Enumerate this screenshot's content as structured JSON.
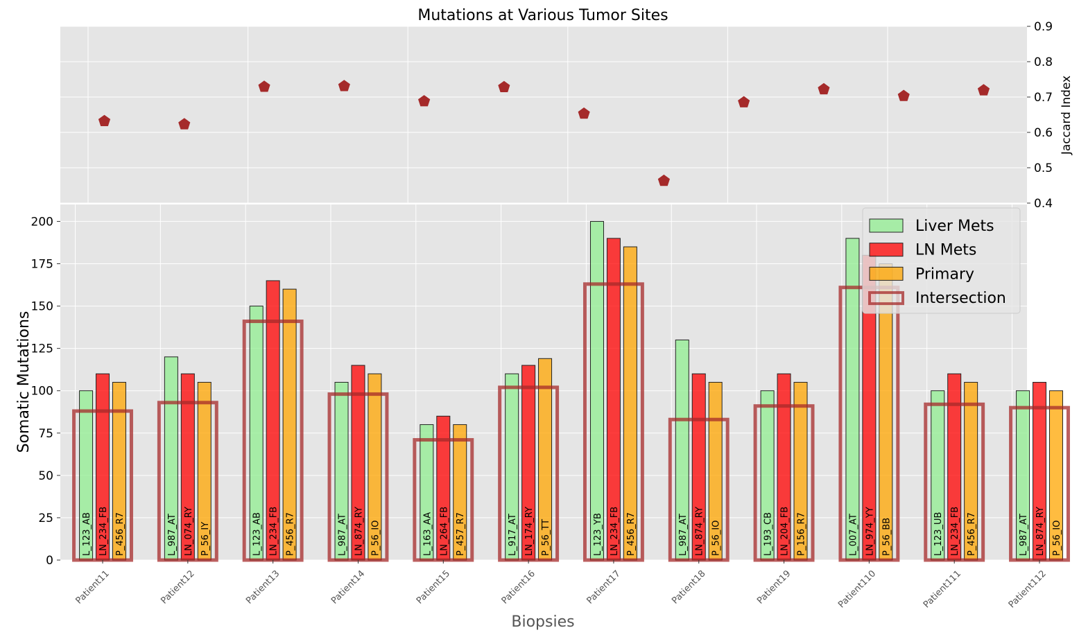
{
  "chart_data": {
    "title": "Mutations at Various Tumor Sites",
    "colors": {
      "liver": "#90ee90",
      "ln": "#ff0000",
      "primary": "#ffa500",
      "intersection": "#a52a2a",
      "jaccard": "#a52a2a",
      "panel_bg": "#e5e5e5",
      "grid": "#ffffff"
    },
    "top_panel": {
      "type": "scatter",
      "marker": "pentagon",
      "ylabel": "Jaccard Index",
      "ylim": [
        0.4,
        0.9
      ],
      "yticks": [
        "0.4",
        "0.5",
        "0.6",
        "0.7",
        "0.8",
        "0.9"
      ],
      "points": [
        {
          "biopsy": "L_123_AB",
          "y": 0.632
        },
        {
          "biopsy": "L_987_AT",
          "y": 0.623
        },
        {
          "biopsy": "LN_234_FB",
          "y": 0.729
        },
        {
          "biopsy": "LN_874_RY",
          "y": 0.731
        },
        {
          "biopsy": "L_163_AA",
          "y": 0.688
        },
        {
          "biopsy": "LN_174_RY",
          "y": 0.728
        },
        {
          "biopsy": "L_123_YB",
          "y": 0.653
        },
        {
          "biopsy": "L_987_AT",
          "y": 0.463
        },
        {
          "biopsy": "L_193_CB",
          "y": 0.685
        },
        {
          "biopsy": "LN_974_YY",
          "y": 0.722
        },
        {
          "biopsy": "LN_234_FB",
          "y": 0.703
        },
        {
          "biopsy": "LN_874_RY",
          "y": 0.719
        }
      ]
    },
    "bottom_panel": {
      "type": "bar",
      "xlabel": "Biopsies",
      "ylabel": "Somatic Mutations",
      "ylim": [
        0,
        210
      ],
      "yticks": [
        "0",
        "25",
        "50",
        "75",
        "100",
        "125",
        "150",
        "175",
        "200"
      ],
      "categories": [
        "Patient11",
        "Patient12",
        "Patient13",
        "Patient14",
        "Patient15",
        "Patient16",
        "Patient17",
        "Patient18",
        "Patient19",
        "Patient110",
        "Patient111",
        "Patient112"
      ],
      "series": [
        {
          "name": "Liver Mets",
          "key": "liver",
          "values": [
            100,
            120,
            150,
            105,
            80,
            110,
            200,
            130,
            100,
            190,
            100,
            100
          ],
          "labels": [
            "L_123_AB",
            "L_987_AT",
            "L_123_AB",
            "L_987_AT",
            "L_163_AA",
            "L_917_AT",
            "L_123_YB",
            "L_987_AT",
            "L_193_CB",
            "L_007_AT",
            "L_123_UB",
            "L_987_AT"
          ]
        },
        {
          "name": "LN Mets",
          "key": "ln",
          "values": [
            110,
            110,
            165,
            115,
            85,
            115,
            190,
            110,
            110,
            180,
            110,
            105
          ],
          "labels": [
            "LN_234_FB",
            "LN_074_RY",
            "LN_234_FB",
            "LN_874_RY",
            "LN_264_FB",
            "LN_174_RY",
            "LN_234_FB",
            "LN_874_RY",
            "LN_204_FB",
            "LN_974_YY",
            "LN_234_FB",
            "LN_874_RY"
          ]
        },
        {
          "name": "Primary",
          "key": "primary",
          "values": [
            105,
            105,
            160,
            110,
            80,
            119,
            185,
            105,
            105,
            175,
            105,
            100
          ],
          "labels": [
            "P_456_R7",
            "P_56_IY",
            "P_456_R7",
            "P_56_IO",
            "P_457_R7",
            "P_56_TT",
            "P_456_R7",
            "P_56_IO",
            "P_156_R7",
            "P_56_BB",
            "P_456_R7",
            "P_56_IO"
          ]
        }
      ],
      "intersection": {
        "name": "Intersection",
        "values": [
          88,
          93,
          141,
          98,
          71,
          102,
          163,
          83,
          91,
          161,
          92,
          90
        ]
      }
    },
    "legend": {
      "placement": "top-right",
      "entries": [
        "Liver Mets",
        "LN Mets",
        "Primary",
        "Intersection"
      ]
    }
  }
}
